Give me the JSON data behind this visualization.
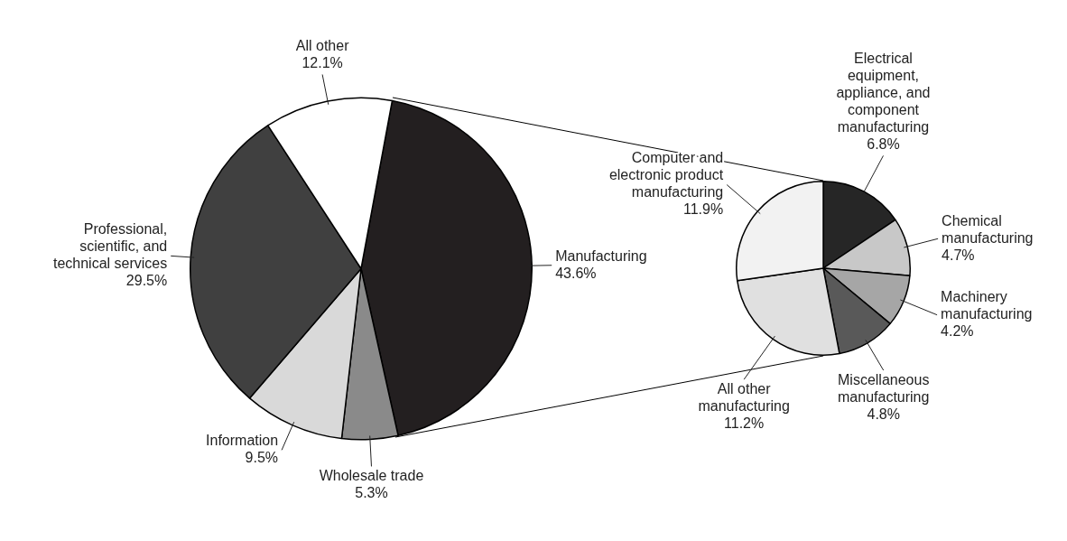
{
  "chart_data": [
    {
      "type": "pie",
      "categories": [
        "Manufacturing",
        "Wholesale trade",
        "Information",
        "Professional, scientific, and technical services",
        "All other"
      ],
      "values": [
        43.6,
        5.3,
        9.5,
        29.5,
        12.1
      ],
      "value_labels": [
        "43.6%",
        "5.3%",
        "9.5%",
        "29.5%",
        "12.1%"
      ],
      "colors": [
        "#231f20",
        "#8a8a8a",
        "#d9d9d9",
        "#404040",
        "#ffffff"
      ]
    },
    {
      "type": "pie",
      "categories": [
        "Electrical equipment, appliance, and component manufacturing",
        "Chemical manufacturing",
        "Machinery manufacturing",
        "Miscellaneous manufacturing",
        "All other manufacturing",
        "Computer and electronic product manufacturing"
      ],
      "values": [
        6.8,
        4.7,
        4.2,
        4.8,
        11.2,
        11.9
      ],
      "value_labels": [
        "6.8%",
        "4.7%",
        "4.2%",
        "4.8%",
        "11.2%",
        "11.9%"
      ],
      "colors": [
        "#262626",
        "#c8c8c8",
        "#a6a6a6",
        "#595959",
        "#e0e0e0",
        "#f2f2f2"
      ]
    }
  ]
}
